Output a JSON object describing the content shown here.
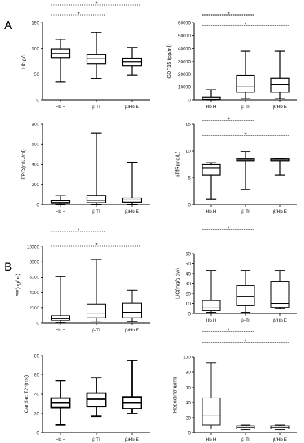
{
  "panel_letters": [
    {
      "label": "A"
    },
    {
      "label": "B"
    }
  ],
  "chart_data": [
    {
      "type": "box",
      "panel": "A",
      "ylabel": "Hb g/L",
      "ylim": [
        0,
        150
      ],
      "yticks": [
        0,
        50,
        100,
        150
      ],
      "categories": [
        "Hb H",
        "β-TI",
        "β/Hb E"
      ],
      "boxes": [
        {
          "min": 35,
          "q1": 82,
          "median": 90,
          "q3": 99,
          "max": 118
        },
        {
          "min": 42,
          "q1": 70,
          "median": 80,
          "q3": 88,
          "max": 131
        },
        {
          "min": 48,
          "q1": 66,
          "median": 74,
          "q3": 81,
          "max": 102
        }
      ],
      "significance": [
        {
          "from": 0,
          "to": 2,
          "label": "*"
        },
        {
          "from": 0,
          "to": 1,
          "label": "*"
        }
      ]
    },
    {
      "type": "box",
      "panel": "A",
      "ylabel": "GDF15 (pg/ml)",
      "ylim": [
        0,
        60000
      ],
      "yticks": [
        0,
        10000,
        20000,
        30000,
        40000,
        50000,
        60000
      ],
      "categories": [
        "Hb H",
        "β-TI",
        "β/Hb E"
      ],
      "boxes": [
        {
          "min": 0,
          "q1": 300,
          "median": 800,
          "q3": 2000,
          "max": 8000
        },
        {
          "min": 1000,
          "q1": 6000,
          "median": 10000,
          "q3": 19000,
          "max": 38000
        },
        {
          "min": 1000,
          "q1": 6000,
          "median": 12000,
          "q3": 17000,
          "max": 38000
        }
      ],
      "significance": [
        {
          "from": 0,
          "to": 1,
          "label": "*"
        },
        {
          "from": 0,
          "to": 2,
          "label": "*"
        }
      ]
    },
    {
      "type": "box",
      "panel": "A",
      "ylabel": "EPO(mIU/ml)",
      "ylim": [
        0,
        800
      ],
      "yticks": [
        0,
        200,
        400,
        600,
        800
      ],
      "categories": [
        "Hb H",
        "β-TI",
        "β/Hb E"
      ],
      "boxes": [
        {
          "min": 3,
          "q1": 13,
          "median": 22,
          "q3": 38,
          "max": 88
        },
        {
          "min": 3,
          "q1": 20,
          "median": 42,
          "q3": 90,
          "max": 710
        },
        {
          "min": 3,
          "q1": 25,
          "median": 45,
          "q3": 65,
          "max": 420
        }
      ],
      "significance": []
    },
    {
      "type": "box",
      "panel": "A",
      "ylabel": "sTfR(mg/L)",
      "ylim": [
        0,
        15
      ],
      "yticks": [
        0,
        5,
        10,
        15
      ],
      "categories": [
        "Hb H",
        "β-TI",
        "β/Hb E"
      ],
      "boxes": [
        {
          "min": 1.0,
          "q1": 5.5,
          "median": 6.8,
          "q3": 7.5,
          "max": 7.8
        },
        {
          "min": 2.8,
          "q1": 8.1,
          "median": 8.3,
          "q3": 8.5,
          "max": 9.9
        },
        {
          "min": 5.5,
          "q1": 8.1,
          "median": 8.3,
          "q3": 8.5,
          "max": 8.6
        }
      ],
      "significance": [
        {
          "from": 0,
          "to": 1,
          "label": "*"
        },
        {
          "from": 0,
          "to": 2,
          "label": "*"
        }
      ]
    },
    {
      "type": "box",
      "panel": "B",
      "ylabel": "SF(ng/ml)",
      "ylim": [
        0,
        10000
      ],
      "yticks": [
        0,
        2000,
        4000,
        6000,
        8000,
        10000
      ],
      "categories": [
        "Hb H",
        "β-TI",
        "β/Hb E"
      ],
      "boxes": [
        {
          "min": 100,
          "q1": 350,
          "median": 600,
          "q3": 1000,
          "max": 6100
        },
        {
          "min": 150,
          "q1": 700,
          "median": 1300,
          "q3": 2500,
          "max": 8300
        },
        {
          "min": 200,
          "q1": 700,
          "median": 1400,
          "q3": 2600,
          "max": 4300
        }
      ],
      "significance": [
        {
          "from": 0,
          "to": 1,
          "label": "*"
        },
        {
          "from": 0,
          "to": 2,
          "label": "*"
        }
      ]
    },
    {
      "type": "box",
      "panel": "B",
      "ylabel": "LIC(mg/g dw)",
      "ylim": [
        0,
        60
      ],
      "yticks": [
        0,
        10,
        20,
        30,
        40,
        50,
        60
      ],
      "categories": [
        "Hb H",
        "β-TI",
        "β/Hb E"
      ],
      "boxes": [
        {
          "min": 1,
          "q1": 3,
          "median": 6.5,
          "q3": 13,
          "max": 43
        },
        {
          "min": 1,
          "q1": 8,
          "median": 17,
          "q3": 28,
          "max": 43
        },
        {
          "min": 5,
          "q1": 6,
          "median": 10,
          "q3": 32,
          "max": 43
        }
      ],
      "significance": [
        {
          "from": 0,
          "to": 1,
          "label": "*"
        }
      ]
    },
    {
      "type": "box",
      "panel": "B",
      "ylabel": "Cardiac T2*(ms)",
      "ylim": [
        0,
        80
      ],
      "yticks": [
        0,
        20,
        40,
        60,
        80
      ],
      "categories": [
        "Hb H",
        "β-TI",
        "β/Hb E"
      ],
      "boxes": [
        {
          "min": 8,
          "q1": 26,
          "median": 31,
          "q3": 36,
          "max": 54
        },
        {
          "min": 17,
          "q1": 27,
          "median": 35,
          "q3": 41,
          "max": 57
        },
        {
          "min": 20,
          "q1": 25,
          "median": 31,
          "q3": 37,
          "max": 75
        }
      ],
      "significance": []
    },
    {
      "type": "box",
      "panel": "B",
      "ylabel": "Hepcidin(ng/ml)",
      "ylim": [
        0,
        100
      ],
      "yticks": [
        0,
        20,
        40,
        60,
        80,
        100
      ],
      "categories": [
        "Hb H",
        "β-TI",
        "β/Hb E"
      ],
      "boxes": [
        {
          "min": 5,
          "q1": 10,
          "median": 23,
          "q3": 46,
          "max": 92
        },
        {
          "min": 4,
          "q1": 5,
          "median": 7,
          "q3": 9,
          "max": 10
        },
        {
          "min": 4,
          "q1": 5,
          "median": 7,
          "q3": 9,
          "max": 10
        }
      ],
      "significance": [
        {
          "from": 0,
          "to": 1,
          "label": "*"
        },
        {
          "from": 0,
          "to": 2,
          "label": "*"
        }
      ]
    }
  ]
}
